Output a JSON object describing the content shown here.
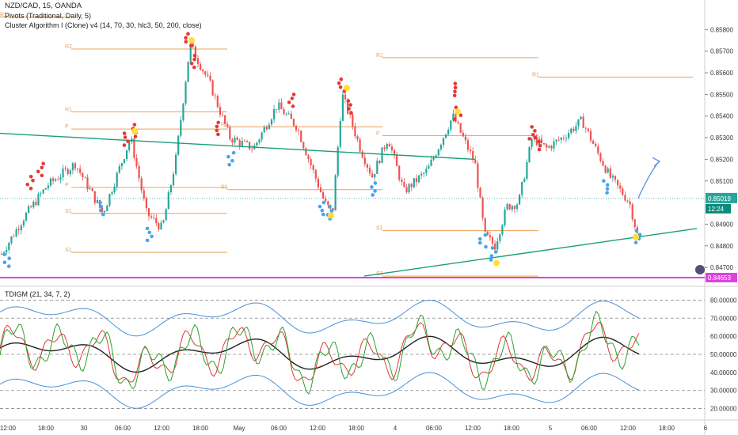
{
  "chart_data": [
    {
      "type": "candlestick",
      "title": "NZD/CAD, 15, OANDA",
      "indicators": [
        "Pivots (Traditional, Daily, 5)",
        "Cluster Algorithm I (Clone) v4 (14, 70, 30, hlc3, 50, 200, close)"
      ],
      "y_ticks": [
        "0.85800",
        "0.85700",
        "0.85600",
        "0.85500",
        "0.85400",
        "0.85300",
        "0.85200",
        "0.85100",
        "0.84900",
        "0.84800",
        "0.84700"
      ],
      "ylim": [
        0.8462,
        0.859
      ],
      "x_ticks": [
        "12:00",
        "18:00",
        "30",
        "06:00",
        "12:00",
        "18:00",
        "May",
        "06:00",
        "12:00",
        "18:00",
        "4",
        "06:00",
        "12:00",
        "18:00",
        "5",
        "06:00",
        "12:00",
        "18:00",
        "6"
      ],
      "last_price": "0.85019",
      "countdown": "12:24",
      "low_marker": "0.84653",
      "pivot_levels": [
        {
          "label": "R2",
          "price": 0.8571
        },
        {
          "label": "R1",
          "price": 0.85858
        },
        {
          "label": "R1",
          "price": 0.8542
        },
        {
          "label": "P",
          "price": 0.8534
        },
        {
          "label": "P",
          "price": 0.8507
        },
        {
          "label": "S1",
          "price": 0.8495
        },
        {
          "label": "S1",
          "price": 0.8477
        },
        {
          "label": "P",
          "price": 0.8535
        },
        {
          "label": "S1",
          "price": 0.8506
        },
        {
          "label": "R1",
          "price": 0.8567
        },
        {
          "label": "P",
          "price": 0.8531
        },
        {
          "label": "S1",
          "price": 0.8487
        },
        {
          "label": "R1",
          "price": 0.8558
        },
        {
          "label": "S2",
          "price": 0.8466
        }
      ],
      "trendlines": [
        {
          "from": [
            0,
            0.8532
          ],
          "to": [
            0.6,
            0.852
          ]
        },
        {
          "from": [
            0.46,
            0.8466
          ],
          "to": [
            0.88,
            0.8488
          ]
        }
      ]
    },
    {
      "type": "line",
      "title": "TDIGM (21, 34, 7, 2)",
      "y_ticks": [
        "80.00000",
        "70.00000",
        "60.00000",
        "50.00000",
        "40.00000",
        "30.00000",
        "20.00000"
      ],
      "ylim": [
        15,
        85
      ],
      "levels": [
        80,
        70,
        50,
        30,
        20
      ],
      "series_colors": {
        "rsi": "#2ca02c",
        "signal": "#d62728",
        "base": "#222222",
        "bands": "#4a90d9"
      }
    }
  ],
  "colors": {
    "bull": "#26a69a",
    "bear": "#ef5350",
    "pivot": "#e8a05a",
    "trend": "#1a9e7a",
    "last": "#26a69a",
    "low": "#e040e0",
    "arrow": "#5b8fd6",
    "dot_red": "#e53935",
    "dot_blue": "#4aa3f0",
    "dot_yellow": "#ffe033"
  }
}
